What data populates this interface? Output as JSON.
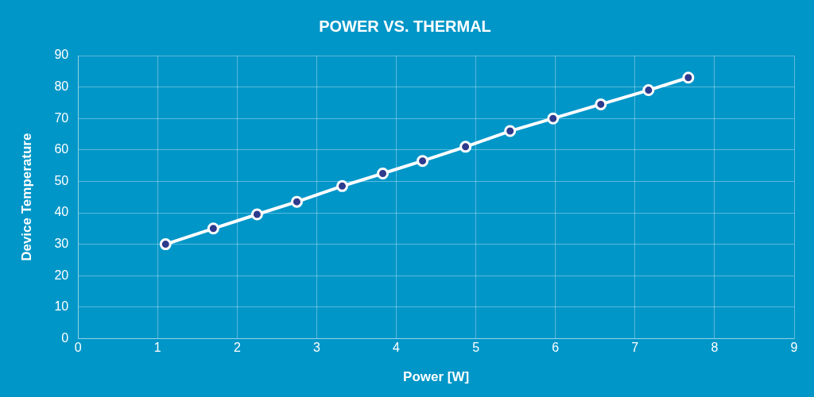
{
  "chart_data": {
    "type": "line",
    "title": "POWER VS. THERMAL",
    "x_label": "Power [W]",
    "y_label": "Device Temperature",
    "x": [
      1.1,
      1.7,
      2.25,
      2.75,
      3.32,
      3.83,
      4.33,
      4.87,
      5.43,
      5.97,
      6.57,
      7.17,
      7.67
    ],
    "values": [
      30,
      35,
      39.5,
      43.5,
      48.5,
      52.5,
      56.5,
      61,
      66,
      70,
      74.5,
      79,
      83
    ],
    "color": "#ffffff",
    "marker": "circle",
    "xlim": [
      0,
      9
    ],
    "xticks": [
      0,
      1,
      2,
      3,
      4,
      5,
      6,
      7,
      8,
      9
    ],
    "ylim": [
      0,
      90
    ],
    "yticks": [
      0,
      10,
      20,
      30,
      40,
      50,
      60,
      70,
      80,
      90
    ],
    "grid": true
  }
}
